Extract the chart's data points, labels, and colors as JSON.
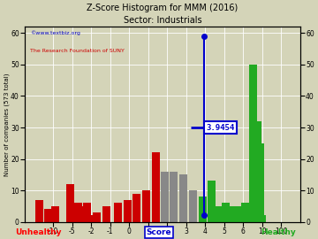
{
  "title": "Z-Score Histogram for MMM (2016)",
  "subtitle": "Sector: Industrials",
  "xlabel_center": "Score",
  "xlabel_left": "Unhealthy",
  "xlabel_right": "Healthy",
  "ylabel": "Number of companies (573 total)",
  "watermark1": "©www.textbiz.org",
  "watermark2": "The Research Foundation of SUNY",
  "zscore_value": "3.9454",
  "zscore_line_x": 3.9454,
  "background_color": "#d4d4b8",
  "bar_color_red": "#cc0000",
  "bar_color_gray": "#888888",
  "bar_color_green": "#22aa22",
  "disp_positions": {
    "-10": 0,
    "-5": 1,
    "-2": 2,
    "-1": 3,
    "0": 4,
    "1": 5,
    "2": 6,
    "3": 7,
    "4": 8,
    "5": 9,
    "6": 10,
    "10": 11,
    "100": 12
  },
  "bar_data": [
    {
      "score": -11.5,
      "height": 7,
      "color": "red"
    },
    {
      "score": -10.5,
      "height": 4,
      "color": "red"
    },
    {
      "score": -9.5,
      "height": 5,
      "color": "red"
    },
    {
      "score": -5.5,
      "height": 12,
      "color": "red"
    },
    {
      "score": -4.7,
      "height": 5,
      "color": "red"
    },
    {
      "score": -4.1,
      "height": 6,
      "color": "red"
    },
    {
      "score": -3.5,
      "height": 5,
      "color": "red"
    },
    {
      "score": -2.7,
      "height": 6,
      "color": "red"
    },
    {
      "score": -2.2,
      "height": 2,
      "color": "red"
    },
    {
      "score": -1.7,
      "height": 3,
      "color": "red"
    },
    {
      "score": -1.2,
      "height": 5,
      "color": "red"
    },
    {
      "score": -0.6,
      "height": 6,
      "color": "red"
    },
    {
      "score": -0.1,
      "height": 7,
      "color": "red"
    },
    {
      "score": 0.4,
      "height": 9,
      "color": "red"
    },
    {
      "score": 0.9,
      "height": 10,
      "color": "red"
    },
    {
      "score": 1.4,
      "height": 22,
      "color": "red"
    },
    {
      "score": 1.85,
      "height": 16,
      "color": "gray"
    },
    {
      "score": 2.35,
      "height": 16,
      "color": "gray"
    },
    {
      "score": 2.85,
      "height": 15,
      "color": "gray"
    },
    {
      "score": 3.35,
      "height": 10,
      "color": "gray"
    },
    {
      "score": 3.85,
      "height": 8,
      "color": "green"
    },
    {
      "score": 4.35,
      "height": 13,
      "color": "green"
    },
    {
      "score": 4.7,
      "height": 5,
      "color": "green"
    },
    {
      "score": 5.1,
      "height": 6,
      "color": "green"
    },
    {
      "score": 5.5,
      "height": 5,
      "color": "green"
    },
    {
      "score": 5.9,
      "height": 5,
      "color": "green"
    },
    {
      "score": 6.2,
      "height": 5,
      "color": "green"
    },
    {
      "score": 6.5,
      "height": 6,
      "color": "green"
    },
    {
      "score": 6.8,
      "height": 5,
      "color": "green"
    },
    {
      "score": 7.1,
      "height": 6,
      "color": "green"
    },
    {
      "score": 8.0,
      "height": 50,
      "color": "green"
    },
    {
      "score": 9.0,
      "height": 32,
      "color": "green"
    },
    {
      "score": 9.5,
      "height": 25,
      "color": "green"
    },
    {
      "score": 10.0,
      "height": 2,
      "color": "green"
    }
  ],
  "xtick_labels": [
    "-10",
    "-5",
    "-2",
    "-1",
    "0",
    "1",
    "2",
    "3",
    "4",
    "5",
    "6",
    "10",
    "100"
  ],
  "xtick_scores": [
    -10,
    -5,
    -2,
    -1,
    0,
    1,
    2,
    3,
    4,
    5,
    6,
    10,
    100
  ],
  "ylim": [
    0,
    62
  ],
  "yticks": [
    0,
    10,
    20,
    30,
    40,
    50,
    60
  ]
}
